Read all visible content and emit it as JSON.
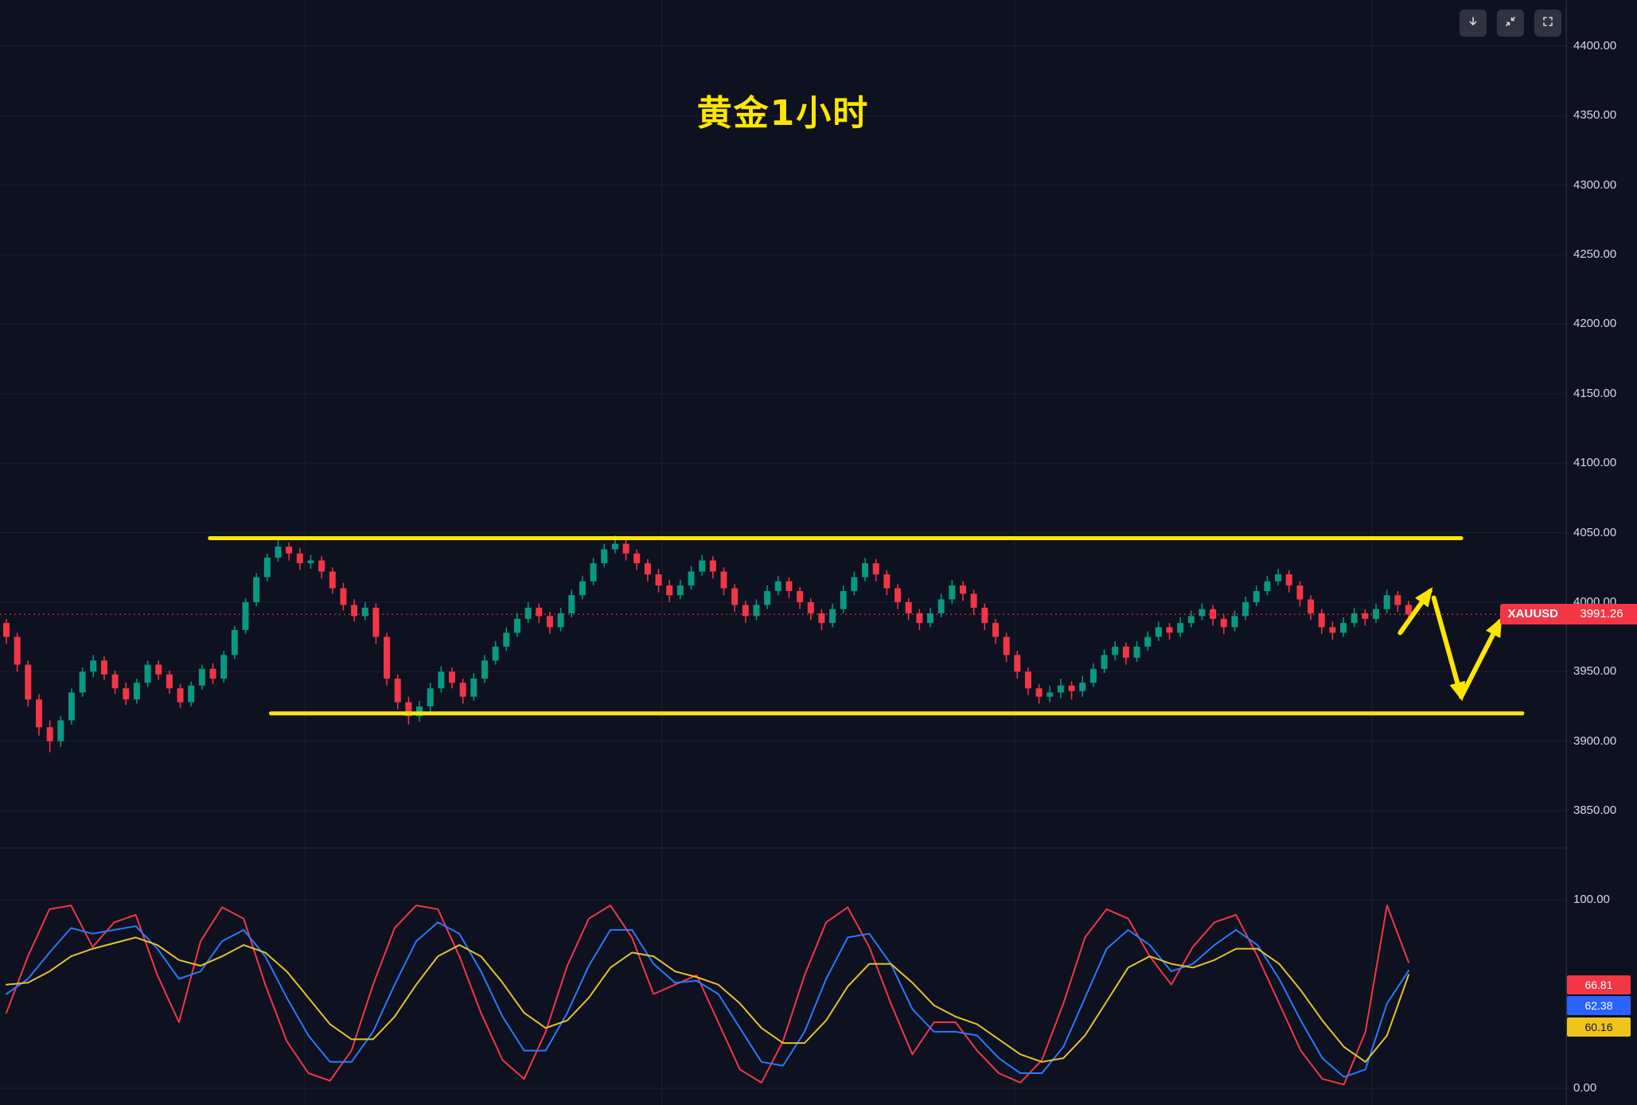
{
  "header": {
    "title": "黄金1小时"
  },
  "toolbar": {
    "buttons": [
      {
        "name": "scroll-to-recent",
        "icon": "arrow-down-icon"
      },
      {
        "name": "restore-pane",
        "icon": "collapse-icon"
      },
      {
        "name": "fullscreen",
        "icon": "fullscreen-icon"
      }
    ]
  },
  "symbol": {
    "name": "XAUUSD",
    "last_price": "3991.26"
  },
  "price_axis": {
    "ticks": [
      "4400.00",
      "4350.00",
      "4300.00",
      "4250.00",
      "4200.00",
      "4150.00",
      "4100.00",
      "4050.00",
      "4000.00",
      "3950.00",
      "3900.00",
      "3850.00"
    ]
  },
  "oscillator_axis": {
    "top": "100.00",
    "bottom": "0.00",
    "values": [
      {
        "label": "66.81",
        "color": "#f23645"
      },
      {
        "label": "62.38",
        "color": "#2962ff"
      },
      {
        "label": "60.16",
        "color": "#f0c41b"
      }
    ]
  },
  "colors": {
    "background": "#0d1120",
    "grid": "#1c2130",
    "panel_border": "#262b3a",
    "up_candle": "#089981",
    "down_candle": "#f23645",
    "annotation_yellow": "#ffe600",
    "last_price_line": "#f23645",
    "axis_text": "#d6d9e0",
    "osc_fast": "#f23645",
    "osc_mid": "#2979ff",
    "osc_slow": "#e6c229"
  },
  "chart_data": [
    {
      "type": "candlestick",
      "title": "黄金1小时",
      "symbol": "XAUUSD",
      "timeframe": "1h",
      "last_price": 3991.26,
      "ylim": [
        3823.1,
        4433.2
      ],
      "yticks": [
        3850,
        3900,
        3950,
        4000,
        4050,
        4100,
        4150,
        4200,
        4250,
        4300,
        4350,
        4400
      ],
      "grid": true,
      "candles": [
        [
          3985,
          3988,
          3970,
          3975
        ],
        [
          3975,
          3978,
          3950,
          3955
        ],
        [
          3955,
          3958,
          3925,
          3930
        ],
        [
          3930,
          3934,
          3904,
          3910
        ],
        [
          3910,
          3915,
          3892,
          3900
        ],
        [
          3900,
          3918,
          3896,
          3915
        ],
        [
          3915,
          3938,
          3912,
          3935
        ],
        [
          3935,
          3953,
          3932,
          3950
        ],
        [
          3950,
          3962,
          3946,
          3958
        ],
        [
          3958,
          3961,
          3944,
          3948
        ],
        [
          3948,
          3951,
          3934,
          3938
        ],
        [
          3938,
          3942,
          3926,
          3930
        ],
        [
          3930,
          3945,
          3927,
          3942
        ],
        [
          3942,
          3958,
          3939,
          3955
        ],
        [
          3955,
          3958,
          3944,
          3948
        ],
        [
          3948,
          3951,
          3934,
          3938
        ],
        [
          3938,
          3941,
          3924,
          3928
        ],
        [
          3928,
          3943,
          3925,
          3940
        ],
        [
          3940,
          3955,
          3937,
          3952
        ],
        [
          3952,
          3956,
          3941,
          3945
        ],
        [
          3945,
          3965,
          3942,
          3962
        ],
        [
          3962,
          3983,
          3959,
          3980
        ],
        [
          3980,
          4003,
          3977,
          4000
        ],
        [
          4000,
          4021,
          3997,
          4018
        ],
        [
          4018,
          4035,
          4015,
          4032
        ],
        [
          4032,
          4046,
          4029,
          4040
        ],
        [
          4040,
          4043,
          4030,
          4035
        ],
        [
          4035,
          4039,
          4023,
          4028
        ],
        [
          4028,
          4034,
          4024,
          4030
        ],
        [
          4030,
          4033,
          4017,
          4022
        ],
        [
          4022,
          4025,
          4006,
          4010
        ],
        [
          4010,
          4014,
          3994,
          3998
        ],
        [
          3998,
          4002,
          3986,
          3990
        ],
        [
          3990,
          4000,
          3987,
          3996
        ],
        [
          3996,
          3999,
          3970,
          3975
        ],
        [
          3975,
          3978,
          3940,
          3945
        ],
        [
          3945,
          3948,
          3923,
          3928
        ],
        [
          3928,
          3932,
          3912,
          3918
        ],
        [
          3918,
          3929,
          3914,
          3925
        ],
        [
          3925,
          3942,
          3921,
          3938
        ],
        [
          3938,
          3954,
          3935,
          3950
        ],
        [
          3950,
          3953,
          3938,
          3942
        ],
        [
          3942,
          3945,
          3927,
          3932
        ],
        [
          3932,
          3949,
          3929,
          3945
        ],
        [
          3945,
          3962,
          3942,
          3958
        ],
        [
          3958,
          3972,
          3955,
          3968
        ],
        [
          3968,
          3982,
          3965,
          3978
        ],
        [
          3978,
          3992,
          3975,
          3988
        ],
        [
          3988,
          4000,
          3985,
          3996
        ],
        [
          3996,
          3999,
          3985,
          3990
        ],
        [
          3990,
          3993,
          3977,
          3982
        ],
        [
          3982,
          3996,
          3979,
          3992
        ],
        [
          3992,
          4009,
          3989,
          4005
        ],
        [
          4005,
          4019,
          4002,
          4015
        ],
        [
          4015,
          4032,
          4012,
          4028
        ],
        [
          4028,
          4042,
          4025,
          4038
        ],
        [
          4038,
          4048,
          4035,
          4042
        ],
        [
          4042,
          4045,
          4030,
          4035
        ],
        [
          4035,
          4038,
          4023,
          4028
        ],
        [
          4028,
          4031,
          4015,
          4020
        ],
        [
          4020,
          4024,
          4007,
          4012
        ],
        [
          4012,
          4016,
          4000,
          4005
        ],
        [
          4005,
          4016,
          4002,
          4012
        ],
        [
          4012,
          4026,
          4009,
          4022
        ],
        [
          4022,
          4034,
          4019,
          4030
        ],
        [
          4030,
          4033,
          4017,
          4022
        ],
        [
          4022,
          4025,
          4005,
          4010
        ],
        [
          4010,
          4013,
          3993,
          3998
        ],
        [
          3998,
          4001,
          3985,
          3990
        ],
        [
          3990,
          4002,
          3987,
          3998
        ],
        [
          3998,
          4012,
          3995,
          4008
        ],
        [
          4008,
          4019,
          4005,
          4015
        ],
        [
          4015,
          4018,
          4003,
          4008
        ],
        [
          4008,
          4011,
          3995,
          4000
        ],
        [
          4000,
          4003,
          3987,
          3992
        ],
        [
          3992,
          3995,
          3980,
          3985
        ],
        [
          3985,
          3999,
          3982,
          3995
        ],
        [
          3995,
          4012,
          3992,
          4008
        ],
        [
          4008,
          4022,
          4005,
          4018
        ],
        [
          4018,
          4032,
          4015,
          4028
        ],
        [
          4028,
          4031,
          4015,
          4020
        ],
        [
          4020,
          4023,
          4005,
          4010
        ],
        [
          4010,
          4013,
          3995,
          4000
        ],
        [
          4000,
          4003,
          3987,
          3992
        ],
        [
          3992,
          3995,
          3980,
          3985
        ],
        [
          3985,
          3996,
          3982,
          3992
        ],
        [
          3992,
          4006,
          3989,
          4002
        ],
        [
          4002,
          4016,
          3999,
          4012
        ],
        [
          4012,
          4015,
          4001,
          4006
        ],
        [
          4006,
          4009,
          3991,
          3996
        ],
        [
          3996,
          3999,
          3980,
          3985
        ],
        [
          3985,
          3988,
          3970,
          3975
        ],
        [
          3975,
          3978,
          3957,
          3962
        ],
        [
          3962,
          3965,
          3945,
          3950
        ],
        [
          3950,
          3953,
          3933,
          3938
        ],
        [
          3938,
          3941,
          3927,
          3932
        ],
        [
          3932,
          3940,
          3928,
          3935
        ],
        [
          3935,
          3945,
          3931,
          3940
        ],
        [
          3940,
          3943,
          3930,
          3936
        ],
        [
          3936,
          3947,
          3932,
          3942
        ],
        [
          3942,
          3956,
          3939,
          3952
        ],
        [
          3952,
          3966,
          3949,
          3962
        ],
        [
          3962,
          3972,
          3958,
          3968
        ],
        [
          3968,
          3971,
          3955,
          3960
        ],
        [
          3960,
          3972,
          3957,
          3968
        ],
        [
          3968,
          3979,
          3965,
          3975
        ],
        [
          3975,
          3986,
          3972,
          3982
        ],
        [
          3982,
          3985,
          3973,
          3978
        ],
        [
          3978,
          3989,
          3975,
          3985
        ],
        [
          3985,
          3994,
          3982,
          3990
        ],
        [
          3990,
          3999,
          3987,
          3995
        ],
        [
          3995,
          3998,
          3983,
          3988
        ],
        [
          3988,
          3991,
          3977,
          3982
        ],
        [
          3982,
          3994,
          3979,
          3990
        ],
        [
          3990,
          4004,
          3987,
          4000
        ],
        [
          4000,
          4012,
          3997,
          4008
        ],
        [
          4008,
          4019,
          4005,
          4015
        ],
        [
          4015,
          4024,
          4012,
          4020
        ],
        [
          4020,
          4023,
          4007,
          4012
        ],
        [
          4012,
          4015,
          3997,
          4002
        ],
        [
          4002,
          4005,
          3987,
          3992
        ],
        [
          3992,
          3995,
          3977,
          3982
        ],
        [
          3982,
          3986,
          3973,
          3978
        ],
        [
          3978,
          3989,
          3975,
          3985
        ],
        [
          3985,
          3996,
          3982,
          3992
        ],
        [
          3992,
          3995,
          3983,
          3988
        ],
        [
          3988,
          3999,
          3985,
          3995
        ],
        [
          3995,
          4009,
          3992,
          4005
        ],
        [
          4005,
          4008,
          3993,
          3998
        ],
        [
          3998,
          4001,
          3985,
          3991.26
        ]
      ],
      "annotations": {
        "resistance_line": {
          "price": 4046,
          "x1": 0.134,
          "x2": 0.933
        },
        "support_line": {
          "price": 3920,
          "x1": 0.173,
          "x2": 0.972
        },
        "arrows": [
          {
            "from": {
              "x": 0.894,
              "price": 3978
            },
            "to": {
              "x": 0.913,
              "price": 4008
            }
          },
          {
            "from": {
              "x": 0.9155,
              "price": 4003
            },
            "to": {
              "x": 0.933,
              "price": 3932
            }
          },
          {
            "from": {
              "x": 0.933,
              "price": 3932
            },
            "to": {
              "x": 0.9575,
              "price": 3986
            }
          }
        ]
      }
    },
    {
      "type": "line",
      "name": "stochastic-oscillator",
      "ylim": [
        0,
        100
      ],
      "yticks": [
        0,
        100
      ],
      "series": [
        {
          "name": "fast",
          "color": "#f23645",
          "last": 66.81,
          "values": [
            40,
            70,
            95,
            97,
            75,
            88,
            92,
            60,
            35,
            78,
            96,
            90,
            55,
            25,
            8,
            4,
            20,
            55,
            85,
            97,
            95,
            70,
            40,
            15,
            5,
            30,
            65,
            90,
            97,
            80,
            50,
            55,
            60,
            35,
            10,
            3,
            25,
            60,
            88,
            96,
            75,
            45,
            18,
            35,
            35,
            20,
            8,
            3,
            15,
            45,
            80,
            95,
            90,
            70,
            55,
            75,
            88,
            92,
            70,
            45,
            20,
            5,
            2,
            30,
            97,
            66.81
          ]
        },
        {
          "name": "mid",
          "color": "#2979ff",
          "last": 62.38,
          "values": [
            50,
            58,
            72,
            85,
            82,
            84,
            86,
            74,
            58,
            62,
            78,
            84,
            70,
            48,
            28,
            14,
            14,
            30,
            55,
            78,
            88,
            82,
            62,
            38,
            20,
            20,
            40,
            65,
            84,
            84,
            66,
            56,
            57,
            50,
            32,
            14,
            12,
            30,
            58,
            80,
            82,
            66,
            42,
            30,
            30,
            28,
            16,
            8,
            8,
            22,
            48,
            74,
            84,
            76,
            62,
            66,
            76,
            84,
            76,
            58,
            36,
            16,
            6,
            10,
            45,
            62.38
          ]
        },
        {
          "name": "slow",
          "color": "#e6c229",
          "last": 60.16,
          "values": [
            55,
            56,
            62,
            70,
            74,
            77,
            80,
            76,
            68,
            65,
            70,
            76,
            72,
            62,
            48,
            34,
            26,
            26,
            38,
            55,
            70,
            76,
            70,
            56,
            40,
            32,
            36,
            48,
            64,
            72,
            70,
            62,
            59,
            55,
            45,
            32,
            24,
            24,
            36,
            54,
            66,
            66,
            56,
            44,
            38,
            34,
            26,
            18,
            14,
            16,
            28,
            46,
            64,
            70,
            66,
            64,
            68,
            74,
            74,
            66,
            52,
            36,
            22,
            14,
            28,
            60.16
          ]
        }
      ]
    }
  ]
}
